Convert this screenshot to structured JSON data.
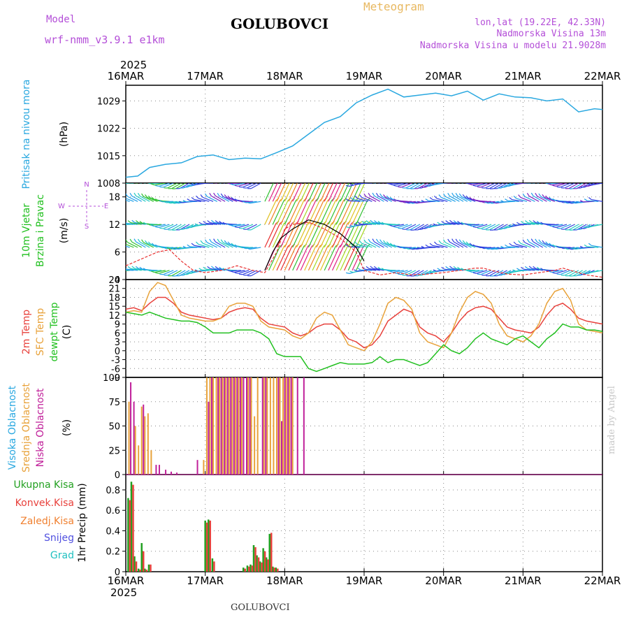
{
  "header": {
    "model_label": "Model",
    "model_name": "wrf-nmm_v3.9.1 e1km",
    "station": "GOLUBOVCI",
    "product": "Meteogram",
    "lonlat": "lon,lat (19.22E, 42.33N)",
    "elevation": "Nadmorska Visina 13m",
    "model_elevation": "Nadmorska Visina u modelu 21.9028m"
  },
  "footer": {
    "station": "GOLUBOVCI",
    "credit": "made by Angel"
  },
  "colors": {
    "pressure": "#2aa8e0",
    "temp2m": "#e8413c",
    "sfc": "#e8a23a",
    "dew": "#22c020",
    "cloud_high": "#2aa8e0",
    "cloud_mid": "#e8a23a",
    "cloud_low": "#c0209a",
    "precip_total": "#22a020",
    "precip_conv": "#e8413c",
    "precip_freez": "#f08030",
    "snow": "#5050e0",
    "hail": "#20c0c0",
    "purple_text": "#b44fd8"
  },
  "chart_data": [
    {
      "type": "line",
      "name": "pressure",
      "title": "",
      "ylabel_left": "Pritisak na nivou mora",
      "units": "(hPa)",
      "ylim": [
        1008,
        1033
      ],
      "yticks": [
        1008,
        1015,
        1022,
        1029
      ],
      "x_unit": "day offset from 16MAR 00UTC",
      "xlim": [
        0,
        6
      ],
      "year": "2025",
      "xticks": [
        "16MAR",
        "17MAR",
        "18MAR",
        "19MAR",
        "20MAR",
        "21MAR",
        "22MAR"
      ],
      "x": [
        0,
        0.15,
        0.3,
        0.5,
        0.7,
        0.9,
        1.1,
        1.3,
        1.5,
        1.7,
        1.9,
        2.1,
        2.3,
        2.5,
        2.7,
        2.9,
        3.1,
        3.3,
        3.5,
        3.7,
        3.9,
        4.1,
        4.3,
        4.5,
        4.7,
        4.9,
        5.1,
        5.3,
        5.5,
        5.7,
        5.9,
        6.0
      ],
      "series": [
        {
          "name": "pressure",
          "values": [
            1009.5,
            1009.8,
            1012,
            1012.8,
            1013.2,
            1014.8,
            1015.2,
            1014,
            1014.4,
            1014.2,
            1015.8,
            1017.5,
            1020.5,
            1023.5,
            1025,
            1028.5,
            1030.5,
            1032,
            1030,
            1030.5,
            1031,
            1030.3,
            1031.5,
            1029.2,
            1030.8,
            1030,
            1029.8,
            1029,
            1029.5,
            1026.2,
            1027,
            1026.8
          ]
        }
      ]
    },
    {
      "type": "line",
      "name": "wind",
      "ylabel_left": [
        "10m Vjetar",
        "Brzina i Pravac"
      ],
      "units": "(m/s)",
      "ylim": [
        0,
        21
      ],
      "yticks": [
        0,
        6,
        12,
        18
      ],
      "xlim": [
        0,
        6
      ],
      "compass": [
        "N",
        "W",
        "E",
        "S"
      ],
      "barb_palette": [
        "#7a1fc0",
        "#3040e0",
        "#20a0e8",
        "#20c8c0",
        "#30c030",
        "#a8d820",
        "#e0c020",
        "#f08020",
        "#e83030",
        "#e02080"
      ],
      "series": [
        {
          "name": "speed_red",
          "x": [
            0,
            0.2,
            0.4,
            0.55,
            0.7,
            0.85,
            1.0,
            1.2,
            1.4,
            1.6,
            1.75,
            1.9,
            2.0,
            2.1,
            2.3,
            2.5,
            2.7,
            2.9,
            3.0,
            3.2,
            3.4,
            3.6,
            3.8,
            4.0,
            4.2,
            4.4,
            4.5,
            4.6,
            4.8,
            5.0,
            5.2,
            5.4,
            5.5,
            5.6,
            5.8,
            6.0
          ],
          "values": [
            3,
            4.5,
            6,
            6.5,
            4,
            2,
            1.5,
            2,
            3,
            2,
            1.5,
            6,
            11,
            12,
            12.5,
            11,
            9,
            6,
            2,
            1,
            1.5,
            1,
            1.2,
            1.5,
            2,
            2.5,
            2.5,
            2,
            1.2,
            1,
            1.5,
            2,
            2.5,
            2,
            1,
            0.5
          ]
        },
        {
          "name": "speed_black",
          "x": [
            1.75,
            1.85,
            1.95,
            2.1,
            2.3,
            2.5,
            2.7,
            2.9,
            3.0
          ],
          "values": [
            2,
            6,
            9,
            11,
            13,
            12,
            10,
            7,
            4
          ]
        }
      ]
    },
    {
      "type": "line",
      "name": "temperature",
      "ylabel_left": [
        "2m Temp",
        "SFC Temp",
        "dewpt Temp"
      ],
      "units": "(C)",
      "ylim": [
        -9,
        24
      ],
      "yticks": [
        -9,
        -6,
        -3,
        0,
        3,
        6,
        9,
        12,
        15,
        18,
        21,
        24
      ],
      "xlim": [
        0,
        6
      ],
      "x": [
        0,
        0.1,
        0.2,
        0.3,
        0.4,
        0.5,
        0.6,
        0.7,
        0.8,
        0.9,
        1.0,
        1.1,
        1.2,
        1.3,
        1.4,
        1.5,
        1.6,
        1.7,
        1.8,
        1.9,
        2.0,
        2.1,
        2.2,
        2.3,
        2.4,
        2.5,
        2.6,
        2.7,
        2.8,
        2.9,
        3.0,
        3.1,
        3.2,
        3.3,
        3.4,
        3.5,
        3.6,
        3.7,
        3.8,
        3.9,
        4.0,
        4.1,
        4.2,
        4.3,
        4.4,
        4.5,
        4.6,
        4.7,
        4.8,
        4.9,
        5.0,
        5.1,
        5.2,
        5.3,
        5.4,
        5.5,
        5.6,
        5.7,
        5.8,
        5.9,
        6.0
      ],
      "series": [
        {
          "name": "2m Temp",
          "values": [
            14,
            14.5,
            13.5,
            16,
            18,
            18,
            16,
            13,
            12,
            11.5,
            11,
            10.5,
            11,
            13,
            14,
            14.5,
            14,
            11,
            9,
            8.5,
            8,
            6,
            5,
            6,
            8,
            9,
            9,
            7,
            4,
            3,
            1,
            2,
            5,
            10,
            12,
            14,
            13,
            8,
            6,
            5,
            3,
            6,
            10,
            13,
            14.5,
            15,
            14,
            11,
            8,
            7,
            6.5,
            6,
            8,
            12,
            15,
            16,
            14,
            11,
            10,
            9.5,
            9
          ]
        },
        {
          "name": "SFC Temp",
          "values": [
            13,
            13.5,
            13,
            20,
            23,
            22,
            17,
            12,
            11,
            10.5,
            10,
            10,
            11,
            15,
            16,
            16,
            15,
            10,
            8,
            7.5,
            7,
            5,
            4,
            6,
            11,
            13,
            12,
            7,
            2,
            1,
            0,
            3,
            9,
            16,
            18,
            17,
            14,
            6,
            3,
            2,
            1,
            6,
            13,
            18,
            20,
            19,
            16,
            9,
            5,
            4,
            3,
            5,
            9,
            16,
            20,
            21,
            17,
            9,
            7,
            6.5,
            6
          ]
        },
        {
          "name": "dewpt Temp",
          "values": [
            13,
            12.5,
            12,
            13,
            12,
            11,
            10.5,
            10,
            10,
            9.5,
            8,
            6,
            6,
            6,
            7,
            7,
            7,
            6,
            4,
            -1,
            -2,
            -2,
            -2,
            -6,
            -7,
            -6,
            -5,
            -4,
            -4.5,
            -4.5,
            -4.5,
            -4,
            -2,
            -4,
            -3,
            -3,
            -4,
            -5,
            -4,
            -1,
            2,
            0,
            -1,
            1,
            4,
            6,
            4,
            3,
            2,
            4,
            5,
            3,
            1,
            4,
            6,
            9,
            8,
            8,
            7,
            7,
            6.5
          ]
        }
      ]
    },
    {
      "type": "bar",
      "name": "clouds",
      "ylabel_left": [
        "Visoka Oblacnost",
        "Srednja Oblacnost",
        "Niska Oblacnost"
      ],
      "units": "(%)",
      "ylim": [
        0,
        100
      ],
      "yticks": [
        0,
        25,
        50,
        75,
        100
      ],
      "xlim": [
        0,
        6
      ],
      "x": [
        0.04,
        0.08,
        0.12,
        0.16,
        0.2,
        0.24,
        0.28,
        0.32,
        0.36,
        0.4,
        0.44,
        0.48,
        0.55,
        0.62,
        0.7,
        0.78,
        0.88,
        0.98,
        1.02,
        1.06,
        1.1,
        1.14,
        1.18,
        1.22,
        1.26,
        1.3,
        1.34,
        1.38,
        1.42,
        1.46,
        1.5,
        1.54,
        1.58,
        1.62,
        1.66,
        1.7,
        1.74,
        1.78,
        1.82,
        1.86,
        1.9,
        1.94,
        1.98,
        2.02,
        2.06,
        2.1,
        2.14,
        2.18,
        2.22
      ],
      "series": [
        {
          "name": "Visoka Oblacnost",
          "values": [
            0,
            0,
            0,
            0,
            0,
            0,
            0,
            0,
            0,
            0,
            0,
            0,
            0,
            0,
            0,
            0,
            0,
            0,
            0,
            0,
            0,
            0,
            0,
            0,
            0,
            0,
            0,
            0,
            0,
            0,
            0,
            0,
            0,
            0,
            0,
            0,
            0,
            0,
            0,
            0,
            0,
            0,
            0,
            0,
            0,
            0,
            0,
            0,
            0
          ]
        },
        {
          "name": "Srednja Oblacnost",
          "values": [
            75,
            0,
            50,
            30,
            70,
            60,
            63,
            25,
            0,
            0,
            0,
            0,
            0,
            0,
            0,
            0,
            0,
            15,
            100,
            100,
            100,
            100,
            100,
            100,
            100,
            100,
            100,
            100,
            100,
            100,
            0,
            100,
            100,
            60,
            100,
            0,
            100,
            100,
            100,
            100,
            100,
            100,
            100,
            100,
            100,
            100,
            0,
            0,
            0
          ]
        },
        {
          "name": "Niska Oblacnost",
          "values": [
            95,
            75,
            0,
            0,
            72,
            0,
            0,
            0,
            10,
            10,
            0,
            5,
            3,
            2,
            0,
            0,
            15,
            0,
            75,
            100,
            0,
            100,
            100,
            100,
            100,
            100,
            100,
            100,
            100,
            100,
            100,
            100,
            0,
            0,
            0,
            100,
            100,
            0,
            0,
            0,
            100,
            55,
            100,
            100,
            100,
            0,
            100,
            0,
            100
          ]
        }
      ]
    },
    {
      "type": "bar",
      "name": "precipitation",
      "ylabel_left": [
        "Ukupna Kisa",
        "Konvek.Kisa",
        "Zaledj.Kisa",
        "Snijeg",
        "Grad"
      ],
      "units": "1hr Precip (mm)",
      "ylim": [
        0,
        0.95
      ],
      "yticks": [
        0,
        0.2,
        0.4,
        0.6,
        0.8
      ],
      "xlim": [
        0,
        6
      ],
      "x": [
        0.03,
        0.07,
        0.11,
        0.16,
        0.2,
        0.24,
        0.29,
        0.33,
        1.0,
        1.04,
        1.09,
        1.48,
        1.53,
        1.57,
        1.61,
        1.65,
        1.69,
        1.73,
        1.77,
        1.81,
        1.85,
        1.89,
        1.93
      ],
      "series": [
        {
          "name": "Ukupna Kisa",
          "values": [
            0.72,
            0.88,
            0.15,
            0.03,
            0.28,
            0.03,
            0.07,
            0,
            0.5,
            0.51,
            0.13,
            0.04,
            0.06,
            0.07,
            0.26,
            0.16,
            0.1,
            0.23,
            0.14,
            0.37,
            0.05,
            0.04,
            0
          ]
        },
        {
          "name": "Konvek.Kisa",
          "values": [
            0.7,
            0.85,
            0.1,
            0.02,
            0.2,
            0.02,
            0.07,
            0,
            0.48,
            0.5,
            0.1,
            0.03,
            0.05,
            0.06,
            0.24,
            0.14,
            0.09,
            0.2,
            0.12,
            0.38,
            0.04,
            0.03,
            0
          ]
        }
      ]
    }
  ]
}
